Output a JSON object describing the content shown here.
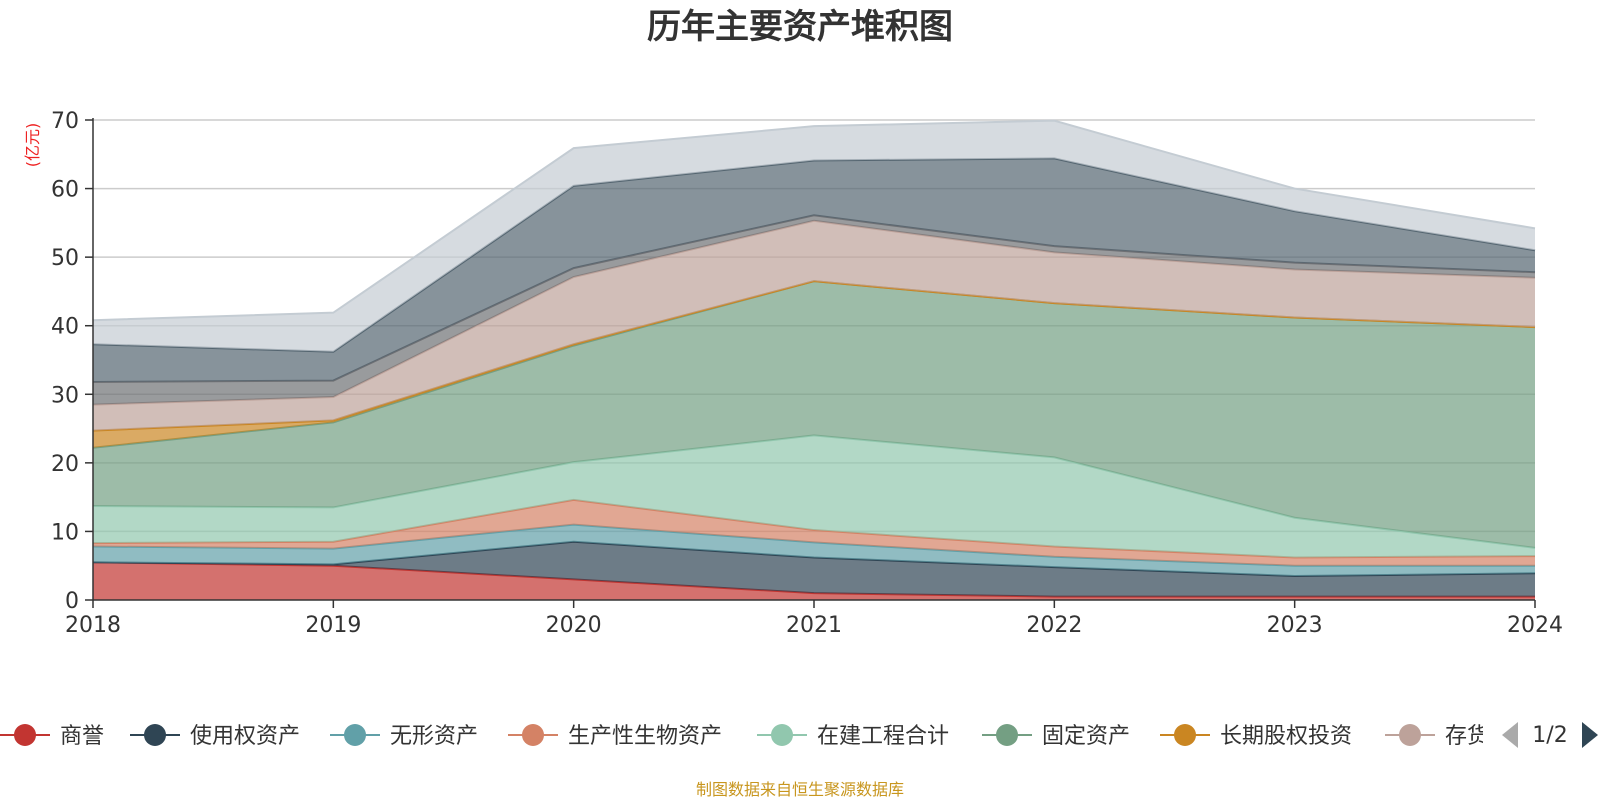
{
  "chart_data": {
    "type": "area",
    "stacked": true,
    "title": "历年主要资产堆积图",
    "ylabel": "(亿元)",
    "x": [
      "2018",
      "2019",
      "2020",
      "2021",
      "2022",
      "2023",
      "2024"
    ],
    "ylim": [
      0,
      70
    ],
    "yticks": [
      0,
      10,
      20,
      30,
      40,
      50,
      60,
      70
    ],
    "grid": true,
    "legend_position": "bottom",
    "legend_page": "1/2",
    "series": [
      {
        "name": "商誉",
        "color": "#c23531",
        "values": [
          5.5,
          5.0,
          3.0,
          1.0,
          0.5,
          0.5,
          0.5
        ]
      },
      {
        "name": "使用权资产",
        "color": "#2f4554",
        "values": [
          0.0,
          0.2,
          5.5,
          5.2,
          4.3,
          3.0,
          3.4
        ]
      },
      {
        "name": "无形资产",
        "color": "#61a0a8",
        "values": [
          2.3,
          2.3,
          2.5,
          2.2,
          1.5,
          1.5,
          1.1
        ]
      },
      {
        "name": "生产性生物资产",
        "color": "#d48265",
        "values": [
          0.5,
          1.0,
          3.6,
          1.8,
          1.5,
          1.2,
          1.4
        ]
      },
      {
        "name": "在建工程合计",
        "color": "#91c7ae",
        "values": [
          5.4,
          5.0,
          5.5,
          13.8,
          13.0,
          5.8,
          1.2
        ]
      },
      {
        "name": "固定资产",
        "color": "#749f83",
        "values": [
          8.5,
          12.4,
          17.0,
          22.5,
          22.5,
          29.2,
          32.2
        ]
      },
      {
        "name": "长期股权投资",
        "color": "#ca8622",
        "values": [
          2.5,
          0.3,
          0.2,
          0.0,
          0.0,
          0.0,
          0.0
        ]
      },
      {
        "name": "存货",
        "color": "#bda29a",
        "values": [
          3.8,
          3.4,
          9.8,
          8.8,
          7.4,
          7.0,
          7.2
        ]
      },
      {
        "name": "",
        "color": "#6e7074",
        "values": [
          3.3,
          2.4,
          1.3,
          0.8,
          0.9,
          1.0,
          0.8
        ]
      },
      {
        "name": "",
        "color": "#546570",
        "values": [
          5.5,
          4.2,
          12.0,
          8.0,
          12.8,
          7.5,
          3.2
        ]
      },
      {
        "name": "",
        "color": "#c4ccd3",
        "values": [
          3.5,
          5.7,
          5.5,
          5.0,
          5.5,
          3.3,
          3.2
        ]
      }
    ]
  },
  "footer": {
    "source": "制图数据来自恒生聚源数据库"
  }
}
